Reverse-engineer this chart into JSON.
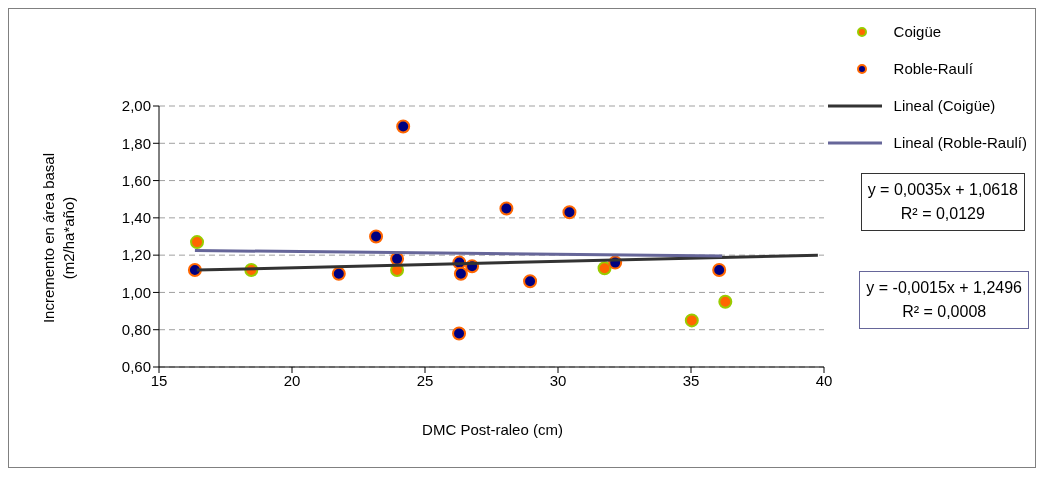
{
  "chart_data": {
    "type": "scatter",
    "xlabel": "DMC Post-raleo (cm)",
    "ylabel": "Incremento en área basal (m2/ha*año)",
    "xlim": [
      15,
      40
    ],
    "xticks": [
      15,
      20,
      25,
      30,
      35,
      40
    ],
    "ylim": [
      0.6,
      2.0
    ],
    "yticks": [
      {
        "value": 0.6,
        "label": "0,60"
      },
      {
        "value": 0.8,
        "label": "0,80"
      },
      {
        "value": 1.0,
        "label": "1,00"
      },
      {
        "value": 1.2,
        "label": "1,20"
      },
      {
        "value": 1.4,
        "label": "1,40"
      },
      {
        "value": 1.6,
        "label": "1,60"
      },
      {
        "value": 1.8,
        "label": "1,80"
      },
      {
        "value": 2.0,
        "label": "2,00"
      }
    ],
    "grid": "y",
    "legend": "top right",
    "marker": "circle",
    "series": [
      {
        "name": "Coigüe",
        "color": "#ff6600",
        "x": [
          16.43,
          18.47,
          23.95,
          31.75,
          35.03,
          36.29
        ],
        "values": [
          1.27,
          1.12,
          1.12,
          1.13,
          0.85,
          0.95
        ]
      },
      {
        "name": "Roble-Raulí",
        "color": "#000080",
        "x": [
          16.35,
          21.76,
          23.16,
          23.95,
          24.18,
          26.29,
          26.35,
          26.77,
          26.28,
          28.06,
          28.95,
          30.43,
          32.15,
          36.06
        ],
        "values": [
          1.12,
          1.1,
          1.3,
          1.18,
          1.89,
          1.16,
          1.1,
          1.14,
          0.78,
          1.45,
          1.06,
          1.43,
          1.16,
          1.12
        ]
      },
      {
        "name": "Lineal (Coigüe)",
        "type": "line",
        "color": "#333333",
        "marker": "none",
        "x": [
          16.42,
          39.77
        ],
        "values": [
          1.12,
          1.2
        ]
      },
      {
        "name": "Lineal (Roble-Raulí)",
        "type": "line",
        "color": "#666699",
        "marker": "none",
        "x": [
          16.35,
          36.17
        ],
        "values": [
          1.225,
          1.195
        ]
      }
    ],
    "annotations": [
      "y = 0,0035x + 1,0618\nR² = 0,0129",
      "y = -0,0015x + 1,2496\nR² = 0,0008"
    ]
  }
}
